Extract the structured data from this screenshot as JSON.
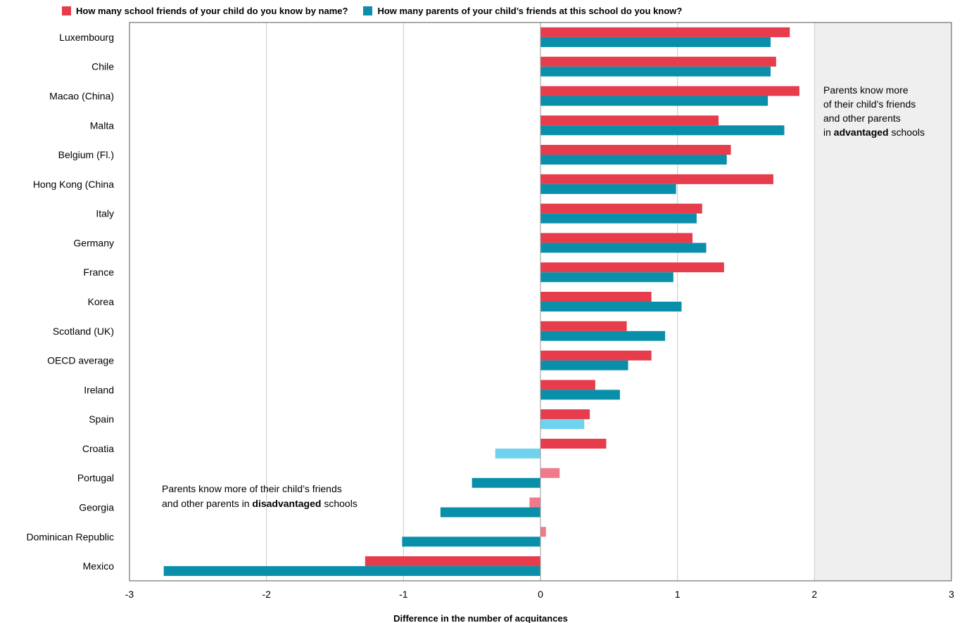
{
  "chart_data": {
    "type": "bar",
    "orientation": "horizontal",
    "categories": [
      "Luxembourg",
      "Chile",
      "Macao (China)",
      "Malta",
      "Belgium (Fl.)",
      "Hong Kong (China",
      "Italy",
      "Germany",
      "France",
      "Korea",
      "Scotland (UK)",
      "OECD average",
      "Ireland",
      "Spain",
      "Croatia",
      "Portugal",
      "Georgia",
      "Dominican Republic",
      "Mexico"
    ],
    "series": [
      {
        "name": "How many school friends of your child do you know by name?",
        "color": "#e63c4b",
        "light_color": "#f07a8a",
        "values": [
          1.82,
          1.72,
          1.89,
          1.3,
          1.39,
          1.7,
          1.18,
          1.11,
          1.34,
          0.81,
          0.63,
          0.81,
          0.4,
          0.36,
          0.48,
          0.14,
          -0.08,
          0.04,
          -1.28
        ],
        "significant": [
          true,
          true,
          true,
          true,
          true,
          true,
          true,
          true,
          true,
          true,
          true,
          true,
          true,
          true,
          true,
          false,
          false,
          false,
          true
        ]
      },
      {
        "name": "How many parents of your child’s friends at this school do you know?",
        "color": "#0a8fab",
        "light_color": "#6fd3ee",
        "values": [
          1.68,
          1.68,
          1.66,
          1.78,
          1.36,
          0.99,
          1.14,
          1.21,
          0.97,
          1.03,
          0.91,
          0.64,
          0.58,
          0.32,
          -0.33,
          -0.5,
          -0.73,
          -1.01,
          -2.75
        ],
        "significant": [
          true,
          true,
          true,
          true,
          true,
          true,
          true,
          true,
          true,
          true,
          true,
          true,
          true,
          false,
          false,
          true,
          true,
          true,
          true
        ]
      }
    ],
    "xlim": [
      -3,
      3
    ],
    "xticks": [
      "-3",
      "-2",
      "-1",
      "0",
      "1",
      "2",
      "3"
    ],
    "xlabel": "Difference in the number of acquitances",
    "ylabel": "",
    "grid": "vertical",
    "shaded_region": "positive-right",
    "annotations": {
      "advantaged": {
        "lines": [
          "Parents know more",
          "of their child’s friends",
          "and other parents"
        ],
        "prefix": "in ",
        "bold": "advantaged",
        "suffix": " schools"
      },
      "disadvantaged": {
        "lines": [
          "Parents know more of their child’s friends"
        ],
        "prefix": "and other parents in ",
        "bold": "disadvantaged",
        "suffix": " schools"
      }
    }
  }
}
